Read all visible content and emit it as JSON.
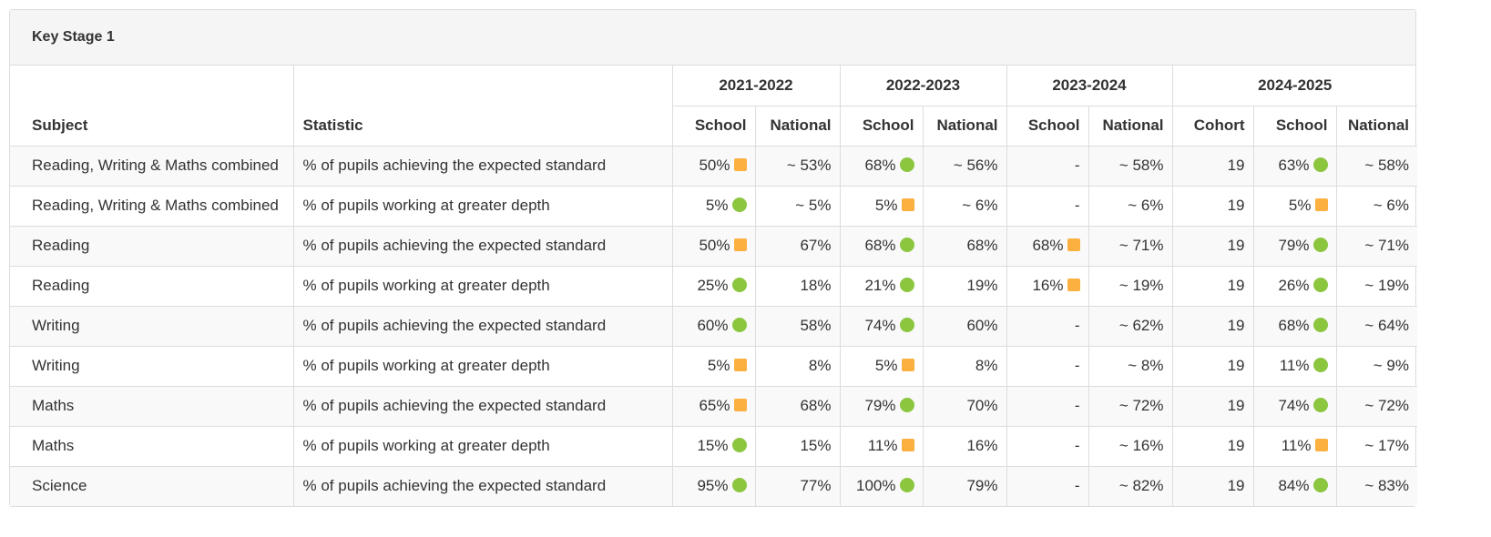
{
  "panel_title": "Key Stage 1",
  "headers": {
    "subject": "Subject",
    "statistic": "Statistic",
    "years": [
      "2021-2022",
      "2022-2023",
      "2023-2024",
      "2024-2025"
    ],
    "school": "School",
    "national": "National",
    "cohort": "Cohort"
  },
  "colors": {
    "indicator_green": "#8cc63f",
    "indicator_amber": "#fbb040"
  },
  "rows": [
    {
      "subject": "Reading, Writing & Maths combined",
      "statistic": "% of pupils achieving the expected standard",
      "y2122_school": "50%",
      "y2122_school_ind": "amber",
      "y2122_national": "~ 53%",
      "y2223_school": "68%",
      "y2223_school_ind": "green",
      "y2223_national": "~ 56%",
      "y2324_school": "-",
      "y2324_school_ind": "",
      "y2324_national": "~ 58%",
      "y2425_cohort": "19",
      "y2425_school": "63%",
      "y2425_school_ind": "green",
      "y2425_national": "~ 58%"
    },
    {
      "subject": "Reading, Writing & Maths combined",
      "statistic": "% of pupils working at greater depth",
      "y2122_school": "5%",
      "y2122_school_ind": "green",
      "y2122_national": "~ 5%",
      "y2223_school": "5%",
      "y2223_school_ind": "amber",
      "y2223_national": "~ 6%",
      "y2324_school": "-",
      "y2324_school_ind": "",
      "y2324_national": "~ 6%",
      "y2425_cohort": "19",
      "y2425_school": "5%",
      "y2425_school_ind": "amber",
      "y2425_national": "~ 6%"
    },
    {
      "subject": "Reading",
      "statistic": "% of pupils achieving the expected standard",
      "y2122_school": "50%",
      "y2122_school_ind": "amber",
      "y2122_national": "67%",
      "y2223_school": "68%",
      "y2223_school_ind": "green",
      "y2223_national": "68%",
      "y2324_school": "68%",
      "y2324_school_ind": "amber",
      "y2324_national": "~ 71%",
      "y2425_cohort": "19",
      "y2425_school": "79%",
      "y2425_school_ind": "green",
      "y2425_national": "~ 71%"
    },
    {
      "subject": "Reading",
      "statistic": "% of pupils working at greater depth",
      "y2122_school": "25%",
      "y2122_school_ind": "green",
      "y2122_national": "18%",
      "y2223_school": "21%",
      "y2223_school_ind": "green",
      "y2223_national": "19%",
      "y2324_school": "16%",
      "y2324_school_ind": "amber",
      "y2324_national": "~ 19%",
      "y2425_cohort": "19",
      "y2425_school": "26%",
      "y2425_school_ind": "green",
      "y2425_national": "~ 19%"
    },
    {
      "subject": "Writing",
      "statistic": "% of pupils achieving the expected standard",
      "y2122_school": "60%",
      "y2122_school_ind": "green",
      "y2122_national": "58%",
      "y2223_school": "74%",
      "y2223_school_ind": "green",
      "y2223_national": "60%",
      "y2324_school": "-",
      "y2324_school_ind": "",
      "y2324_national": "~ 62%",
      "y2425_cohort": "19",
      "y2425_school": "68%",
      "y2425_school_ind": "green",
      "y2425_national": "~ 64%"
    },
    {
      "subject": "Writing",
      "statistic": "% of pupils working at greater depth",
      "y2122_school": "5%",
      "y2122_school_ind": "amber",
      "y2122_national": "8%",
      "y2223_school": "5%",
      "y2223_school_ind": "amber",
      "y2223_national": "8%",
      "y2324_school": "-",
      "y2324_school_ind": "",
      "y2324_national": "~ 8%",
      "y2425_cohort": "19",
      "y2425_school": "11%",
      "y2425_school_ind": "green",
      "y2425_national": "~ 9%"
    },
    {
      "subject": "Maths",
      "statistic": "% of pupils achieving the expected standard",
      "y2122_school": "65%",
      "y2122_school_ind": "amber",
      "y2122_national": "68%",
      "y2223_school": "79%",
      "y2223_school_ind": "green",
      "y2223_national": "70%",
      "y2324_school": "-",
      "y2324_school_ind": "",
      "y2324_national": "~ 72%",
      "y2425_cohort": "19",
      "y2425_school": "74%",
      "y2425_school_ind": "green",
      "y2425_national": "~ 72%"
    },
    {
      "subject": "Maths",
      "statistic": "% of pupils working at greater depth",
      "y2122_school": "15%",
      "y2122_school_ind": "green",
      "y2122_national": "15%",
      "y2223_school": "11%",
      "y2223_school_ind": "amber",
      "y2223_national": "16%",
      "y2324_school": "-",
      "y2324_school_ind": "",
      "y2324_national": "~ 16%",
      "y2425_cohort": "19",
      "y2425_school": "11%",
      "y2425_school_ind": "amber",
      "y2425_national": "~ 17%"
    },
    {
      "subject": "Science",
      "statistic": "% of pupils achieving the expected standard",
      "y2122_school": "95%",
      "y2122_school_ind": "green",
      "y2122_national": "77%",
      "y2223_school": "100%",
      "y2223_school_ind": "green",
      "y2223_national": "79%",
      "y2324_school": "-",
      "y2324_school_ind": "",
      "y2324_national": "~ 82%",
      "y2425_cohort": "19",
      "y2425_school": "84%",
      "y2425_school_ind": "green",
      "y2425_national": "~ 83%"
    }
  ]
}
